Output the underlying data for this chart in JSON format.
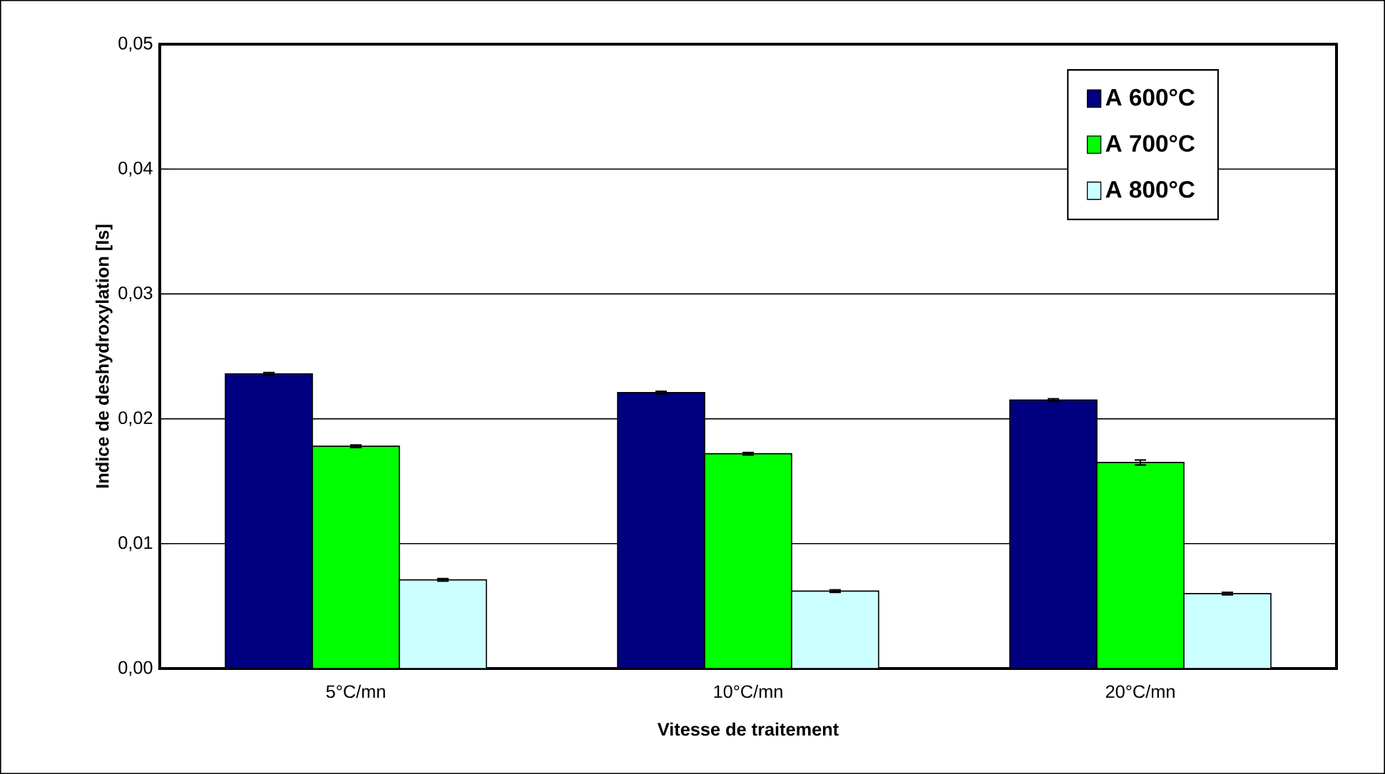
{
  "chart_data": {
    "type": "bar",
    "xlabel": "Vitesse de traitement",
    "ylabel": "Indice de deshydroxylation [Is]",
    "categories": [
      "5°C/mn",
      "10°C/mn",
      "20°C/mn"
    ],
    "series": [
      {
        "name": "A 600°C",
        "color": "#000080",
        "values": [
          0.0236,
          0.0221,
          0.0215
        ],
        "errors": [
          0.0001,
          0.0001,
          0.0001
        ]
      },
      {
        "name": "A 700°C",
        "color": "#00ff00",
        "values": [
          0.0178,
          0.0172,
          0.0165
        ],
        "errors": [
          0.0001,
          0.0001,
          0.0002
        ]
      },
      {
        "name": "A 800°C",
        "color": "#ccffff",
        "values": [
          0.0071,
          0.0062,
          0.006
        ],
        "errors": [
          0.0001,
          0.0001,
          0.0001
        ]
      }
    ],
    "ylim": [
      0,
      0.05
    ],
    "yticks": [
      {
        "value": 0,
        "label": "0,00"
      },
      {
        "value": 0.01,
        "label": "0,01"
      },
      {
        "value": 0.02,
        "label": "0,02"
      },
      {
        "value": 0.03,
        "label": "0,03"
      },
      {
        "value": 0.04,
        "label": "0,04"
      },
      {
        "value": 0.05,
        "label": "0,05"
      }
    ],
    "grid": "y",
    "legend": "top right"
  }
}
